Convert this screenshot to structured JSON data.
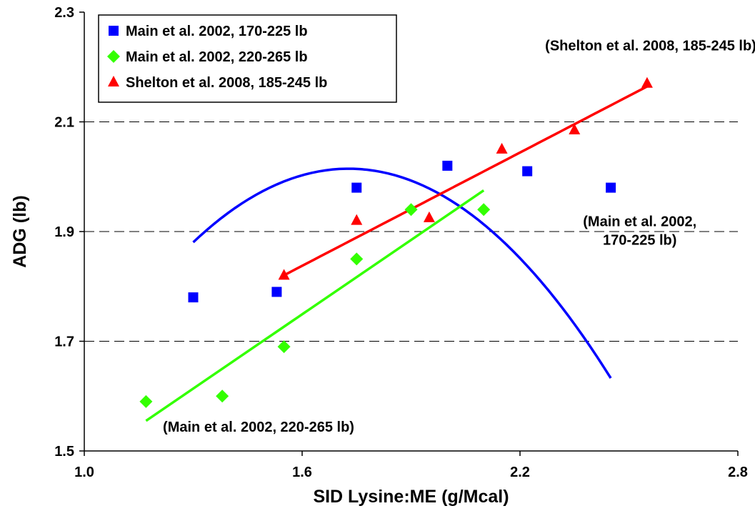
{
  "chart_data": {
    "type": "scatter",
    "title": "",
    "xlabel": "SID Lysine:ME (g/Mcal)",
    "ylabel": "ADG (lb)",
    "xlim": [
      1.0,
      2.8
    ],
    "ylim": [
      1.5,
      2.3
    ],
    "x_ticks": [
      "1.0",
      "1.6",
      "2.2",
      "2.8"
    ],
    "y_ticks": [
      "1.5",
      "1.7",
      "1.9",
      "2.1",
      "2.3"
    ],
    "grid": "horizontal dashed",
    "legend_position": "top-left",
    "series": [
      {
        "name": "Main et al. 2002, 170-225 lb",
        "color": "#0000ff",
        "marker": "square",
        "points": [
          [
            1.3,
            1.78
          ],
          [
            1.53,
            1.79
          ],
          [
            1.75,
            1.98
          ],
          [
            2.0,
            2.02
          ],
          [
            2.22,
            2.01
          ],
          [
            2.45,
            1.98
          ]
        ],
        "trend": {
          "type": "quadratic",
          "x_range": [
            1.3,
            2.45
          ],
          "coef": [
            -0.7325,
            2.5315,
            -0.1726
          ]
        }
      },
      {
        "name": "Main et al. 2002, 220-265 lb",
        "color": "#33ff00",
        "marker": "diamond",
        "points": [
          [
            1.17,
            1.59
          ],
          [
            1.38,
            1.6
          ],
          [
            1.55,
            1.69
          ],
          [
            1.75,
            1.85
          ],
          [
            1.9,
            1.94
          ],
          [
            2.1,
            1.94
          ]
        ],
        "trend": {
          "type": "linear",
          "x_range": [
            1.17,
            2.1
          ],
          "slope": 0.4516,
          "intercept": 1.0266
        }
      },
      {
        "name": "Shelton et al. 2008, 185-245 lb",
        "color": "#ff0000",
        "marker": "triangle",
        "points": [
          [
            1.55,
            1.82
          ],
          [
            1.75,
            1.92
          ],
          [
            1.95,
            1.925
          ],
          [
            2.15,
            2.05
          ],
          [
            2.35,
            2.085
          ],
          [
            2.55,
            2.17
          ]
        ],
        "trend": {
          "type": "linear",
          "x_range": [
            1.55,
            2.55
          ],
          "slope": 0.3442,
          "intercept": 1.2868
        }
      }
    ],
    "annotations": [
      {
        "lines": [
          "(Shelton et al. 2008, 185-245 lb)"
        ],
        "x": 2.56,
        "y": 2.23,
        "anchor": "middle"
      },
      {
        "lines": [
          "(Main et al. 2002,",
          "170-225 lb)"
        ],
        "x": 2.53,
        "y": 1.91,
        "anchor": "middle"
      },
      {
        "lines": [
          "(Main et al. 2002, 220-265 lb)"
        ],
        "x": 1.48,
        "y": 1.535,
        "anchor": "middle"
      }
    ]
  }
}
